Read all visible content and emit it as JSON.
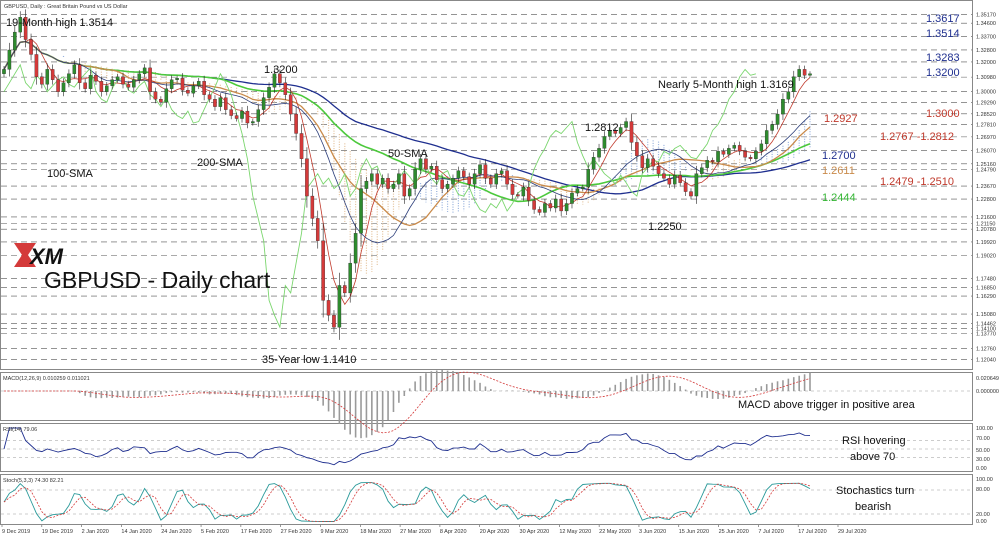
{
  "header": {
    "caption": "GBPUSD, Daily : Great Britain Pound vs US Dollar",
    "title": "GBPUSD - Daily chart",
    "logo_text": "XM"
  },
  "colors": {
    "bull": "#2e8b2e",
    "bear": "#d43a3a",
    "sma200": "#1f2f8f",
    "sma100": "#4cc93c",
    "sma50": "#c98a4a",
    "tenkan": "#c0392b",
    "kijun": "#2c3e7a",
    "chikou": "#7bd66e",
    "cloud_up": "#88a6d8",
    "cloud_down": "#e0b98c",
    "macd_hist": "#9a9a9a",
    "signal": "#d43a3a",
    "rsi": "#1f2f8f",
    "stoch_k": "#2a9a9a",
    "stoch_d": "#d43a3a",
    "label_blue": "#1f2f8f",
    "label_red": "#c0392b",
    "label_orange": "#c98a4a",
    "label_green": "#33b533"
  },
  "chart_data": {
    "type": "candlestick",
    "price_axis": {
      "range": [
        1.12,
        1.3555
      ],
      "ticks": [
        "1.35170",
        "1.34600",
        "1.33700",
        "1.32800",
        "1.32000",
        "1.30980",
        "1.30000",
        "1.29290",
        "1.28520",
        "1.27810",
        "1.26970",
        "1.26070",
        "1.25160",
        "1.24790",
        "1.23670",
        "1.22800",
        "1.21600",
        "1.21150",
        "1.20780",
        "1.19920",
        "1.19020",
        "1.17480",
        "1.16850",
        "1.16290",
        "1.15080",
        "1.14462",
        "1.14100",
        "1.13770",
        "1.12760",
        "1.12040"
      ]
    },
    "x_dates": [
      "9 Dec 2019",
      "19 Dec 2019",
      "2 Jan 2020",
      "14 Jan 2020",
      "24 Jan 2020",
      "5 Feb 2020",
      "17 Feb 2020",
      "27 Feb 2020",
      "9 Mar 2020",
      "18 Mar 2020",
      "27 Mar 2020",
      "8 Apr 2020",
      "20 Apr 2020",
      "30 Apr 2020",
      "12 May 2020",
      "22 May 2020",
      "3 Jun 2020",
      "15 Jun 2020",
      "25 Jun 2020",
      "7 Jul 2020",
      "17 Jul 2020",
      "29 Jul 2020"
    ],
    "close_series": [
      1.315,
      1.328,
      1.34,
      1.35,
      1.335,
      1.325,
      1.31,
      1.305,
      1.315,
      1.308,
      1.3,
      1.306,
      1.312,
      1.318,
      1.306,
      1.302,
      1.311,
      1.307,
      1.3,
      1.304,
      1.308,
      1.31,
      1.305,
      1.303,
      1.308,
      1.312,
      1.316,
      1.3,
      1.295,
      1.293,
      1.302,
      1.308,
      1.309,
      1.301,
      1.299,
      1.304,
      1.307,
      1.298,
      1.295,
      1.29,
      1.296,
      1.288,
      1.284,
      1.282,
      1.287,
      1.279,
      1.28,
      1.288,
      1.296,
      1.303,
      1.312,
      1.306,
      1.298,
      1.285,
      1.272,
      1.255,
      1.23,
      1.215,
      1.2,
      1.16,
      1.15,
      1.142,
      1.17,
      1.165,
      1.185,
      1.205,
      1.235,
      1.24,
      1.245,
      1.238,
      1.242,
      1.235,
      1.238,
      1.245,
      1.23,
      1.235,
      1.248,
      1.255,
      1.248,
      1.25,
      1.241,
      1.235,
      1.238,
      1.242,
      1.247,
      1.243,
      1.238,
      1.245,
      1.251,
      1.242,
      1.238,
      1.245,
      1.247,
      1.238,
      1.231,
      1.23,
      1.236,
      1.227,
      1.221,
      1.219,
      1.225,
      1.222,
      1.228,
      1.22,
      1.225,
      1.232,
      1.235,
      1.236,
      1.248,
      1.256,
      1.262,
      1.27,
      1.274,
      1.272,
      1.276,
      1.28,
      1.266,
      1.257,
      1.249,
      1.255,
      1.25,
      1.245,
      1.242,
      1.238,
      1.244,
      1.239,
      1.233,
      1.23,
      1.245,
      1.249,
      1.254,
      1.253,
      1.26,
      1.258,
      1.262,
      1.264,
      1.26,
      1.256,
      1.255,
      1.26,
      1.265,
      1.274,
      1.278,
      1.285,
      1.295,
      1.3,
      1.31,
      1.315,
      1.311,
      1.312
    ],
    "overlays": {
      "sma200_label": "200-SMA",
      "sma100_label": "100-SMA",
      "sma50_label": "50-SMA"
    },
    "levels_left": [
      {
        "text": "19-Month high 1.3514"
      },
      {
        "text": "1.3200"
      },
      {
        "text": "Nearly 5-Month high 1.3169"
      },
      {
        "text": "1.2812"
      },
      {
        "text": "1.2250"
      },
      {
        "text": "35-Year low 1.1410"
      }
    ],
    "levels_right": [
      {
        "text": "1.3617",
        "color": "blue"
      },
      {
        "text": "1.3514",
        "color": "blue"
      },
      {
        "text": "1.3283",
        "color": "blue"
      },
      {
        "text": "1.3200",
        "color": "blue"
      },
      {
        "text": "1.3000",
        "color": "red"
      },
      {
        "text": "1.2927",
        "color": "red"
      },
      {
        "text": "1.2767 -1.2812",
        "color": "red"
      },
      {
        "text": "1.2700",
        "color": "blue"
      },
      {
        "text": "1.2611",
        "color": "orange"
      },
      {
        "text": "1.2479 -1.2510",
        "color": "red"
      },
      {
        "text": "1.2444",
        "color": "green"
      }
    ],
    "macd": {
      "header": "MACD(12,26,9) 0.010259 0.011021",
      "ticks": [
        "0.020649",
        "0.000000"
      ],
      "annotation": "MACD above trigger in positive area"
    },
    "rsi": {
      "header": "RSI(14) 79.06",
      "ticks": [
        "100.00",
        "70.00",
        "50.00",
        "30.00",
        "0.00"
      ],
      "annotation": [
        "RSI hovering",
        "above 70"
      ]
    },
    "stochastic": {
      "header": "Stoch(5,3,3) 74.30 82.21",
      "ticks": [
        "100.00",
        "80.00",
        "20.00",
        "0.00"
      ],
      "annotation": [
        "Stochastics turn",
        "bearish"
      ]
    }
  }
}
